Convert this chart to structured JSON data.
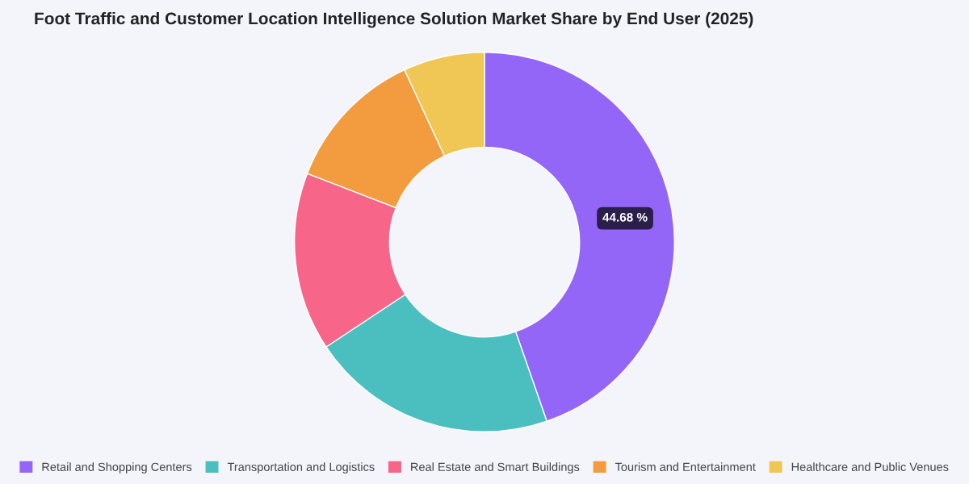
{
  "chart_data": {
    "type": "donut",
    "title": "Foot Traffic and Customer Location Intelligence Solution Market Share by End User (2025)",
    "categories": [
      "Retail and Shopping Centers",
      "Transportation and Logistics",
      "Real Estate and Smart Buildings",
      "Tourism and Entertainment",
      "Healthcare and Public Venues"
    ],
    "values": [
      44.68,
      21.0,
      15.2,
      12.2,
      6.92
    ],
    "colors": [
      "#9466f7",
      "#4bbfbf",
      "#f76589",
      "#f29c3f",
      "#f0c755"
    ],
    "value_labels": [
      "44.68 %",
      null,
      null,
      null,
      null
    ],
    "legend": "bottom"
  }
}
